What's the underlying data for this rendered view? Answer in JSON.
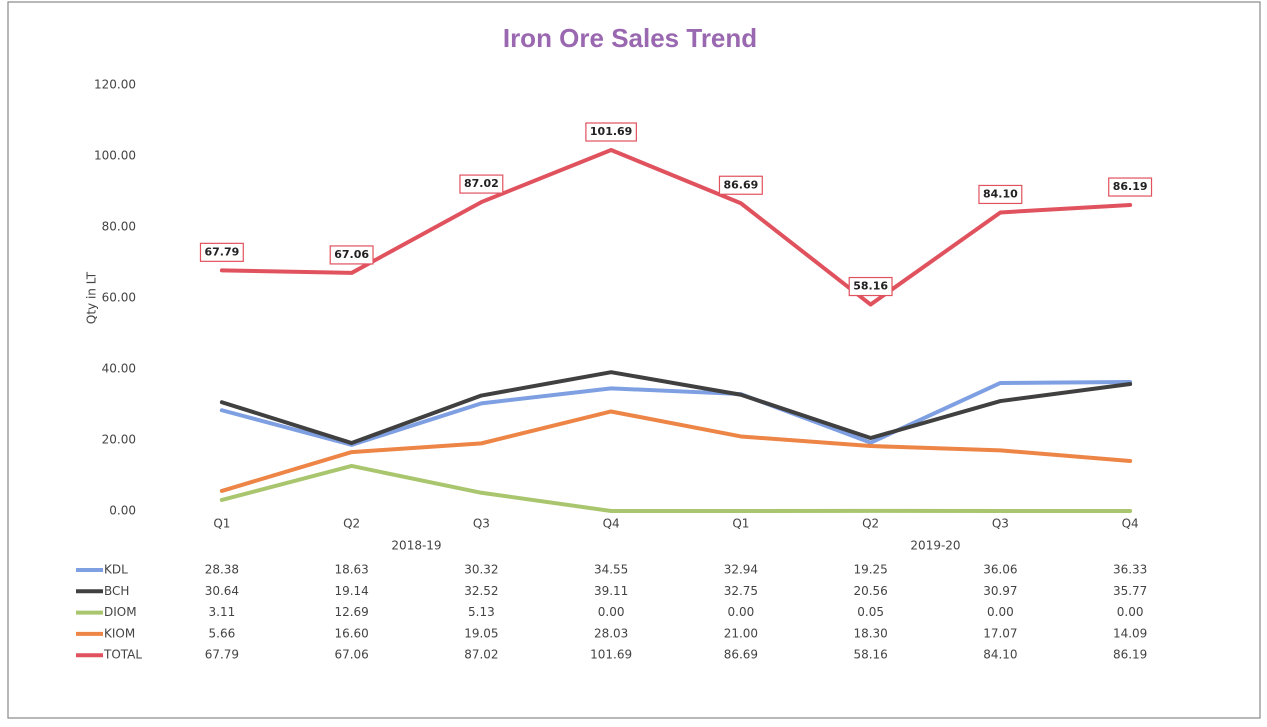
{
  "chart_data": {
    "type": "line",
    "title": "Iron Ore Sales Trend",
    "y_label": "Qty in LT",
    "categories": [
      "Q1",
      "Q2",
      "Q3",
      "Q4",
      "Q1",
      "Q2",
      "Q3",
      "Q4"
    ],
    "category_groups": [
      "2018-19",
      "2019-20"
    ],
    "ylim": [
      0,
      120
    ],
    "yticks": [
      {
        "value": 0,
        "label": "0.00"
      },
      {
        "value": 20,
        "label": "20.00"
      },
      {
        "value": 40,
        "label": "40.00"
      },
      {
        "value": 60,
        "label": "60.00"
      },
      {
        "value": 80,
        "label": "80.00"
      },
      {
        "value": 100,
        "label": "100.00"
      },
      {
        "value": 120,
        "label": "120.00"
      }
    ],
    "grid": false,
    "series": [
      {
        "name": "KDL",
        "color": "#7e9fe2",
        "values": [
          28.38,
          18.63,
          30.32,
          34.55,
          32.94,
          19.25,
          36.06,
          36.33
        ],
        "value_labels": [
          "28.38",
          "18.63",
          "30.32",
          "34.55",
          "32.94",
          "19.25",
          "36.06",
          "36.33"
        ]
      },
      {
        "name": "BCH",
        "color": "#404040",
        "values": [
          30.64,
          19.14,
          32.52,
          39.11,
          32.75,
          20.56,
          30.97,
          35.77
        ],
        "value_labels": [
          "30.64",
          "19.14",
          "32.52",
          "39.11",
          "32.75",
          "20.56",
          "30.97",
          "35.77"
        ]
      },
      {
        "name": "DIOM",
        "color": "#a9c66f",
        "values": [
          3.11,
          12.69,
          5.13,
          0,
          0,
          0.05,
          0,
          0
        ],
        "value_labels": [
          "3.11",
          "12.69",
          "5.13",
          "0.00",
          "0.00",
          "0.05",
          "0.00",
          "0.00"
        ]
      },
      {
        "name": "KIOM",
        "color": "#ed8546",
        "values": [
          5.66,
          16.6,
          19.05,
          28.03,
          21,
          18.3,
          17.07,
          14.09
        ],
        "value_labels": [
          "5.66",
          "16.60",
          "19.05",
          "28.03",
          "21.00",
          "18.30",
          "17.07",
          "14.09"
        ]
      },
      {
        "name": "TOTAL",
        "color": "#e0525e",
        "data_labels": true,
        "values": [
          67.79,
          67.06,
          87.02,
          101.69,
          86.69,
          58.16,
          84.1,
          86.19
        ],
        "value_labels": [
          "67.79",
          "67.06",
          "87.02",
          "101.69",
          "86.69",
          "58.16",
          "84.10",
          "86.19"
        ]
      }
    ]
  }
}
